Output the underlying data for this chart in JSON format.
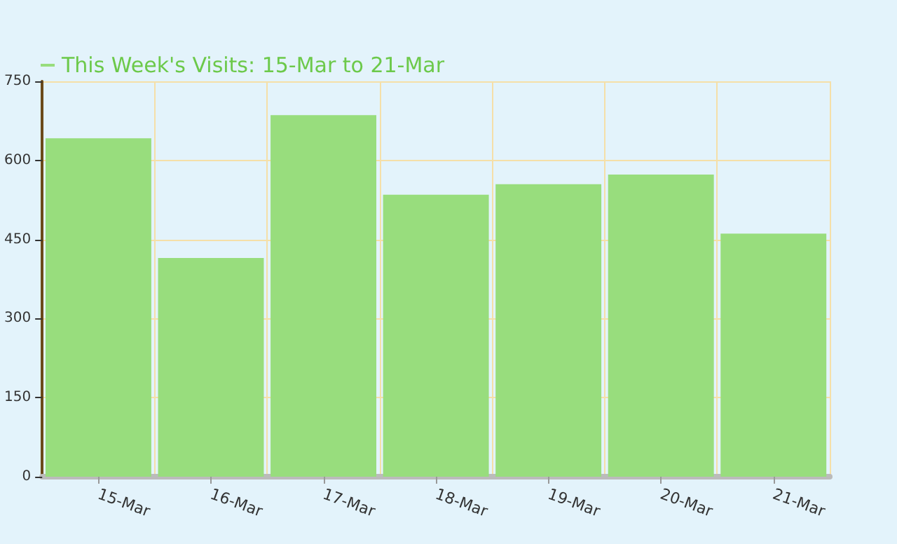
{
  "chart_data": {
    "type": "bar",
    "categories": [
      "15-Mar",
      "16-Mar",
      "17-Mar",
      "18-Mar",
      "19-Mar",
      "20-Mar",
      "21-Mar"
    ],
    "series": [
      {
        "name": "This Week's Visits: 15-Mar to 21-Mar",
        "color": "#98dd7d",
        "values": [
          642,
          415,
          686,
          535,
          555,
          573,
          461
        ]
      }
    ],
    "ylim": [
      0,
      750
    ],
    "yticks": [
      0,
      150,
      300,
      450,
      600,
      750
    ],
    "grid": true,
    "legend": "top left"
  }
}
